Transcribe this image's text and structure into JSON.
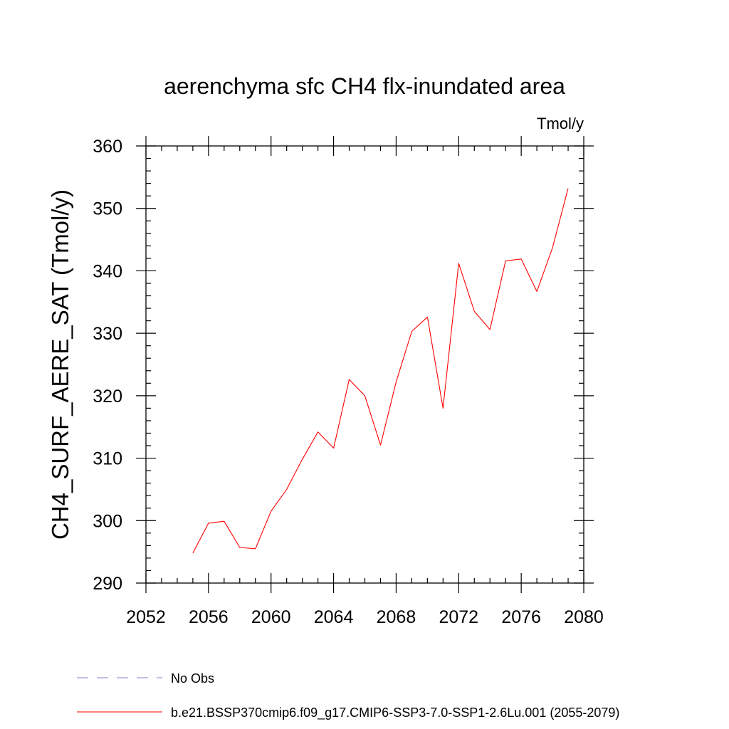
{
  "chart_data": {
    "type": "line",
    "title": "aerenchyma sfc CH4 flx-inundated area",
    "units": "Tmol/y",
    "xlabel": "",
    "ylabel": "CH4_SURF_AERE_SAT  (Tmol/y)",
    "xlim": [
      2052,
      2080
    ],
    "ylim": [
      290,
      360
    ],
    "x_ticks": [
      2052,
      2056,
      2060,
      2064,
      2068,
      2072,
      2076,
      2080
    ],
    "y_ticks": [
      290,
      300,
      310,
      320,
      330,
      340,
      350,
      360
    ],
    "grid": false,
    "legend_position": "bottom-left",
    "series": [
      {
        "name": "b.e21.BSSP370cmip6.f09_g17.CMIP6-SSP3-7.0-SSP1-2.6Lu.001 (2055-2079)",
        "color": "#ff0000",
        "dash": "solid",
        "x": [
          2055,
          2056,
          2057,
          2058,
          2059,
          2060,
          2061,
          2062,
          2063,
          2064,
          2065,
          2066,
          2067,
          2068,
          2069,
          2070,
          2071,
          2072,
          2073,
          2074,
          2075,
          2076,
          2077,
          2078,
          2079
        ],
        "values": [
          294.8,
          299.6,
          299.9,
          295.7,
          295.5,
          301.5,
          305.0,
          309.8,
          314.2,
          311.6,
          322.6,
          320.0,
          312.1,
          322.2,
          330.3,
          332.6,
          318.0,
          341.2,
          333.5,
          330.6,
          341.6,
          341.9,
          336.7,
          343.7,
          353.2
        ]
      }
    ],
    "legend": [
      {
        "label": "No Obs",
        "color": "#8b7fc8",
        "dash": "dashed"
      },
      {
        "label": "b.e21.BSSP370cmip6.f09_g17.CMIP6-SSP3-7.0-SSP1-2.6Lu.001 (2055-2079)",
        "color": "#ff0000",
        "dash": "solid"
      }
    ]
  }
}
